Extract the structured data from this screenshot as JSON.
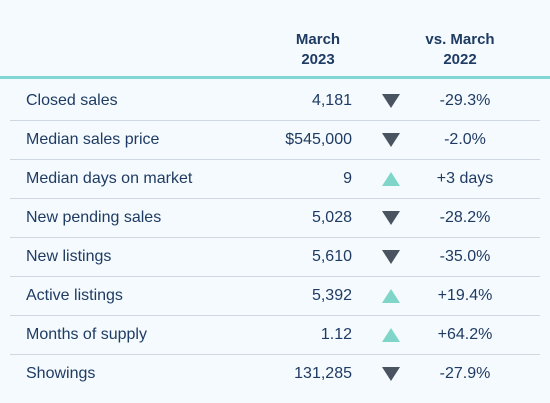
{
  "header": {
    "month_line1": "March",
    "month_line2": "2023",
    "vs_line1": "vs. March",
    "vs_line2": "2022"
  },
  "colors": {
    "accent_line": "#7fd6d3",
    "arrow_down": "#4a5360",
    "arrow_up": "#7fd6c8",
    "text": "#1f3b63",
    "background": "#f4fafd"
  },
  "rows": [
    {
      "label": "Closed sales",
      "value": "4,181",
      "direction": "down",
      "change": "-29.3%"
    },
    {
      "label": "Median sales price",
      "value": "$545,000",
      "direction": "down",
      "change": "-2.0%"
    },
    {
      "label": "Median days on market",
      "value": "9",
      "direction": "up",
      "change": "+3 days"
    },
    {
      "label": "New pending sales",
      "value": "5,028",
      "direction": "down",
      "change": "-28.2%"
    },
    {
      "label": "New listings",
      "value": "5,610",
      "direction": "down",
      "change": "-35.0%"
    },
    {
      "label": "Active listings",
      "value": "5,392",
      "direction": "up",
      "change": "+19.4%"
    },
    {
      "label": "Months of supply",
      "value": "1.12",
      "direction": "up",
      "change": "+64.2%"
    },
    {
      "label": "Showings",
      "value": "131,285",
      "direction": "down",
      "change": "-27.9%"
    }
  ]
}
